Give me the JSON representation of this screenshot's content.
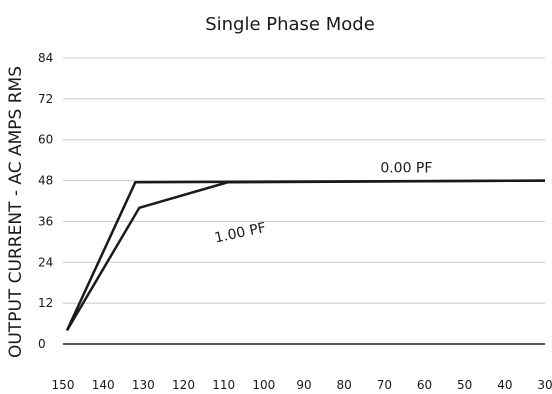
{
  "chart_data": {
    "type": "line",
    "title": "Single Phase Mode",
    "ylabel": "OUTPUT CURRENT - AC AMPS RMS",
    "xlabel": "",
    "x_reversed": true,
    "xlim": [
      150,
      30
    ],
    "ylim": [
      0,
      84
    ],
    "xticks": [
      "150",
      "140",
      "130",
      "120",
      "110",
      "100",
      "90",
      "80",
      "70",
      "60",
      "50",
      "40",
      "30"
    ],
    "yticks": [
      "84",
      "72",
      "60",
      "48",
      "36",
      "24",
      "12",
      "0"
    ],
    "grid": "horizontal",
    "series": [
      {
        "name": "0.00 PF",
        "x": [
          149,
          132,
          30
        ],
        "y": [
          4,
          47.5,
          48
        ]
      },
      {
        "name": "1.00 PF",
        "x": [
          149,
          131,
          109,
          30
        ],
        "y": [
          4,
          40,
          47.5,
          48
        ]
      }
    ]
  }
}
